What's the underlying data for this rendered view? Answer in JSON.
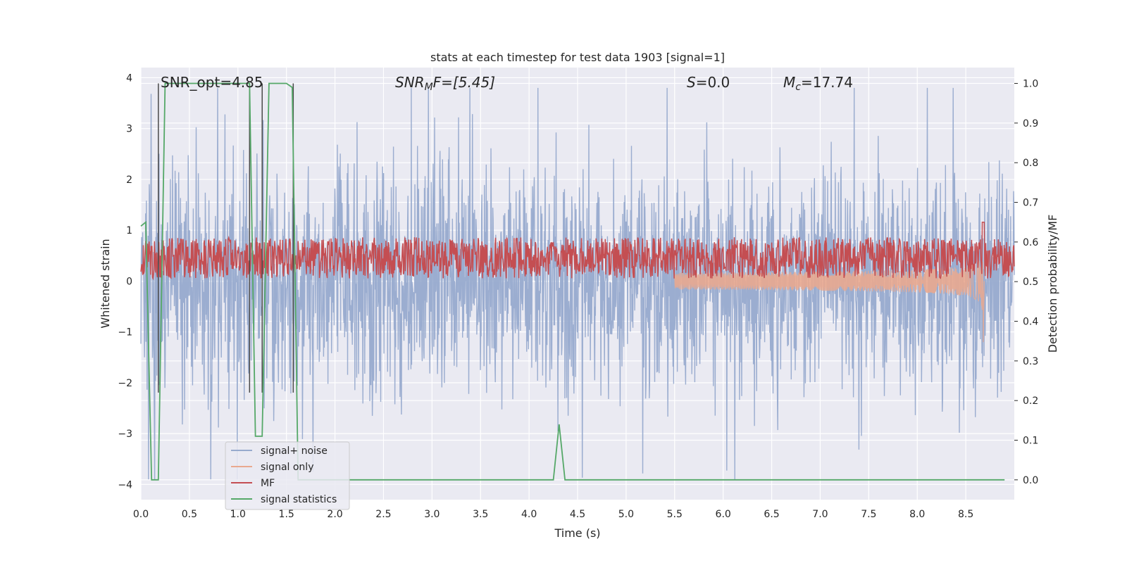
{
  "chart_data": {
    "type": "line",
    "title": "stats at each timestep for test data 1903 [signal=1]",
    "xlabel": "Time (s)",
    "ylabel_left": "Whitened strain",
    "ylabel_right": "Detection probability/MF",
    "xlim": [
      0.0,
      9.0
    ],
    "ylim_left": [
      -4.3,
      4.2
    ],
    "ylim_right": [
      -0.05,
      1.04
    ],
    "x_ticks": [
      "0.0",
      "0.5",
      "1.0",
      "1.5",
      "2.0",
      "2.5",
      "3.0",
      "3.5",
      "4.0",
      "4.5",
      "5.0",
      "5.5",
      "6.0",
      "6.5",
      "7.0",
      "7.5",
      "8.0",
      "8.5"
    ],
    "y_ticks_left": [
      "4",
      "3",
      "2",
      "1",
      "0",
      "−1",
      "−2",
      "−3",
      "−4"
    ],
    "y_ticks_right": [
      "1.0",
      "0.9",
      "0.8",
      "0.7",
      "0.6",
      "0.5",
      "0.4",
      "0.3",
      "0.2",
      "0.1",
      "0.0"
    ],
    "grid": true,
    "legend_position": "lower-left",
    "annotations": {
      "snr_opt": "SNR_opt=4.85",
      "snr_mf_base": "SNR",
      "snr_mf_sub": "M",
      "snr_mf_rest": "F=[5.45]",
      "s_label": "S",
      "s_value": "=0.0",
      "mc_base": "M",
      "mc_sub": "c",
      "mc_value": "=17.74"
    },
    "series": [
      {
        "name": "signal+ noise",
        "color": "#97aacd",
        "description_axis": "left",
        "noise_amplitude_typical": [
          -1.7,
          2.0
        ],
        "noise_extremes": [
          -3.9,
          3.8
        ]
      },
      {
        "name": "signal only",
        "color": "#e9a98f",
        "axis": "left",
        "chirp_end_time": 8.68,
        "chirp_min": -1.2,
        "chirp_max": 1.0
      },
      {
        "name": "MF",
        "color": "#c44e52",
        "axis": "right",
        "band": [
          0.52,
          0.6
        ],
        "peak": {
          "x": 8.68,
          "y": 0.65
        }
      },
      {
        "name": "signal statistics",
        "color": "#55a868",
        "axis": "right",
        "x": [
          0.0,
          0.05,
          0.11,
          0.18,
          0.25,
          0.5,
          1.0,
          1.12,
          1.18,
          1.25,
          1.32,
          1.5,
          1.56,
          1.62,
          2.0,
          4.0,
          4.25,
          4.31,
          4.37,
          4.6,
          8.9
        ],
        "y": [
          0.64,
          0.65,
          0.0,
          0.0,
          1.0,
          1.0,
          1.0,
          1.0,
          0.11,
          0.11,
          1.0,
          1.0,
          0.99,
          0.0,
          0.0,
          0.0,
          0.0,
          0.14,
          0.0,
          0.0,
          0.0
        ]
      }
    ],
    "markers_vlines": [
      0.18,
      1.12,
      1.25,
      1.57
    ]
  },
  "colors": {
    "plot_bg": "#eaeaf2",
    "grid": "#ffffff",
    "noise": "#97aacd",
    "signal": "#e9a98f",
    "mf": "#c44e52",
    "stats": "#55a868",
    "vline": "#4a4a4a"
  }
}
